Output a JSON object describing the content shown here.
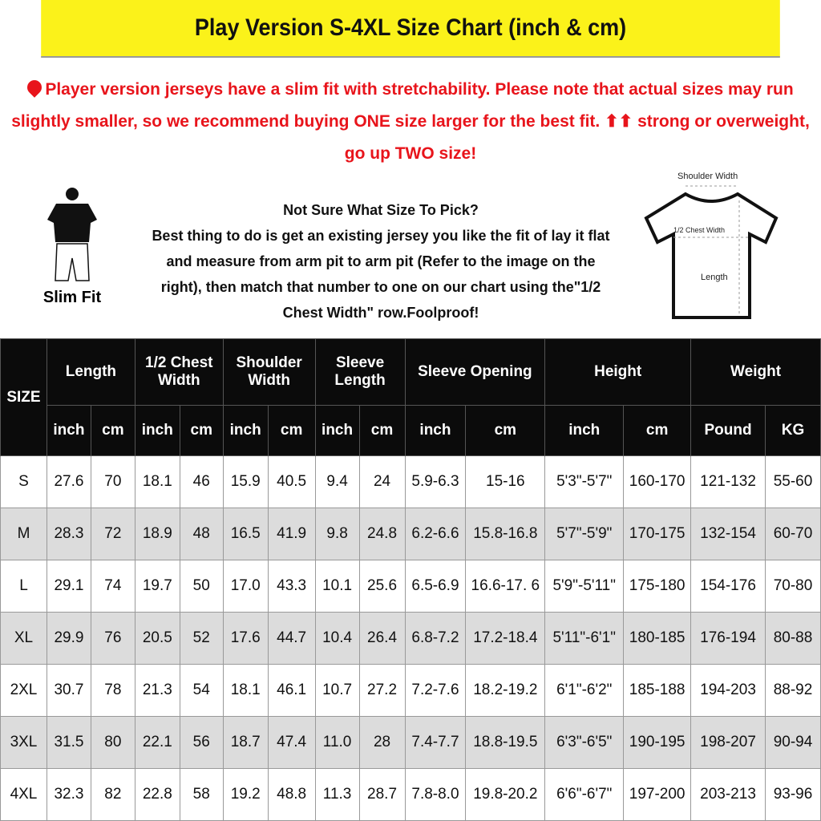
{
  "title": "Play Version S-4XL Size Chart (inch & cm)",
  "notice": "Player version jerseys have a slim fit with stretchability. Please note that actual sizes may run slightly smaller, so we recommend buying ONE size larger for the best fit. ⬆⬆ strong or overweight, go up TWO size!",
  "fit_label": "Slim Fit",
  "help": {
    "heading": "Not Sure What Size To Pick?",
    "body": "Best thing to do is get an existing jersey you like the fit of lay it flat and measure from arm pit to arm pit (Refer to the image on the right), then match that number to one on our chart using the\"1/2 Chest Width\" row.Foolproof!"
  },
  "diagram": {
    "shoulder": "Shoulder Width",
    "chest": "1/2 Chest Width",
    "length": "Length"
  },
  "table": {
    "size_header": "SIZE",
    "groups": [
      "Length",
      "1/2 Chest Width",
      "Shoulder Width",
      "Sleeve Length",
      "Sleeve Opening",
      "Height",
      "Weight"
    ],
    "units": [
      "inch",
      "cm",
      "inch",
      "cm",
      "inch",
      "cm",
      "inch",
      "cm",
      "inch",
      "cm",
      "inch",
      "cm",
      "Pound",
      "KG"
    ],
    "rows": [
      [
        "S",
        "27.6",
        "70",
        "18.1",
        "46",
        "15.9",
        "40.5",
        "9.4",
        "24",
        "5.9-6.3",
        "15-16",
        "5'3\"-5'7\"",
        "160-170",
        "121-132",
        "55-60"
      ],
      [
        "M",
        "28.3",
        "72",
        "18.9",
        "48",
        "16.5",
        "41.9",
        "9.8",
        "24.8",
        "6.2-6.6",
        "15.8-16.8",
        "5'7\"-5'9\"",
        "170-175",
        "132-154",
        "60-70"
      ],
      [
        "L",
        "29.1",
        "74",
        "19.7",
        "50",
        "17.0",
        "43.3",
        "10.1",
        "25.6",
        "6.5-6.9",
        "16.6-17. 6",
        "5'9\"-5'11\"",
        "175-180",
        "154-176",
        "70-80"
      ],
      [
        "XL",
        "29.9",
        "76",
        "20.5",
        "52",
        "17.6",
        "44.7",
        "10.4",
        "26.4",
        "6.8-7.2",
        "17.2-18.4",
        "5'11\"-6'1\"",
        "180-185",
        "176-194",
        "80-88"
      ],
      [
        "2XL",
        "30.7",
        "78",
        "21.3",
        "54",
        "18.1",
        "46.1",
        "10.7",
        "27.2",
        "7.2-7.6",
        "18.2-19.2",
        "6'1\"-6'2\"",
        "185-188",
        "194-203",
        "88-92"
      ],
      [
        "3XL",
        "31.5",
        "80",
        "22.1",
        "56",
        "18.7",
        "47.4",
        "11.0",
        "28",
        "7.4-7.7",
        "18.8-19.5",
        "6'3\"-6'5\"",
        "190-195",
        "198-207",
        "90-94"
      ],
      [
        "4XL",
        "32.3",
        "82",
        "22.8",
        "58",
        "19.2",
        "48.8",
        "11.3",
        "28.7",
        "7.8-8.0",
        "19.8-20.2",
        "6'6\"-6'7\"",
        "197-200",
        "203-213",
        "93-96"
      ]
    ]
  }
}
